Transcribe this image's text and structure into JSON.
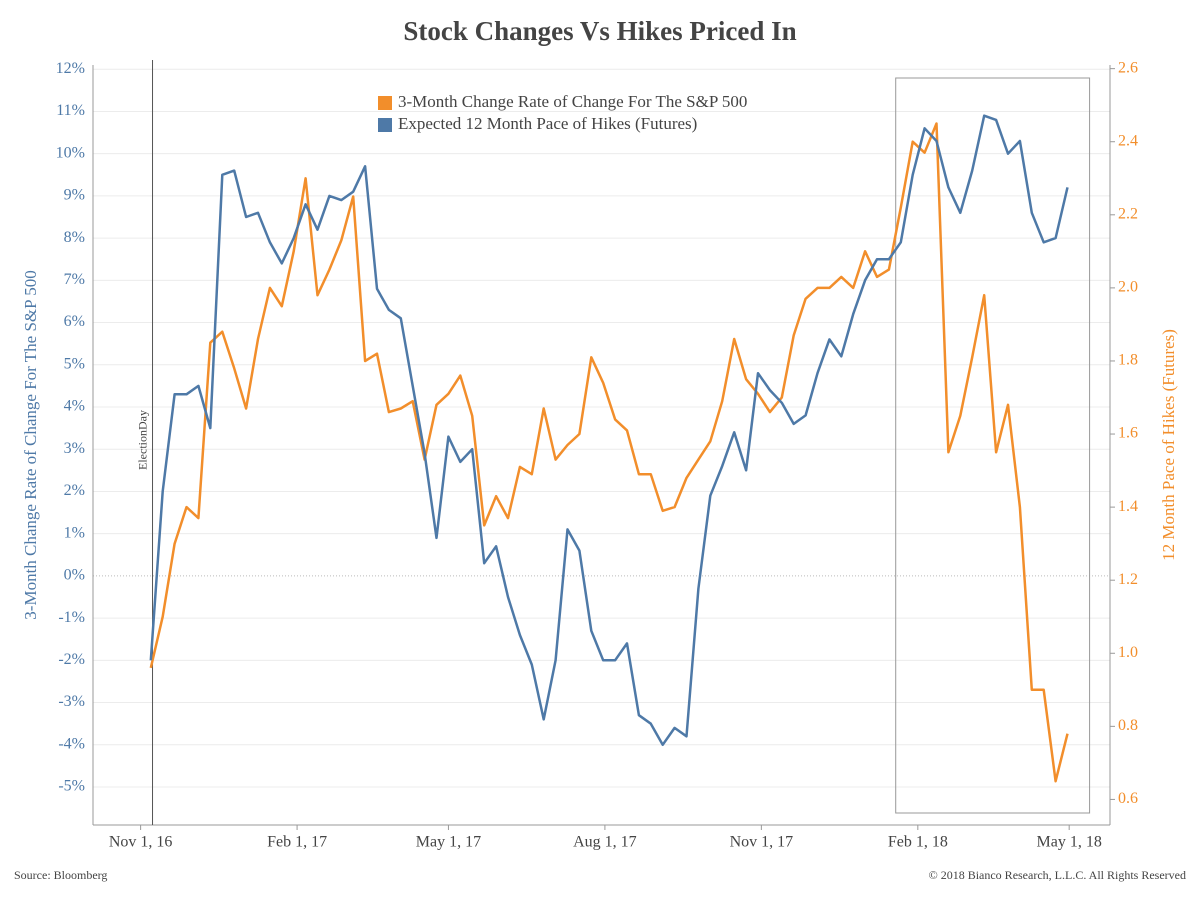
{
  "chart_data": {
    "type": "line",
    "title": "Stock Changes Vs Hikes Priced In",
    "ylabel": "3-Month Change Rate of Change For The S&P 500",
    "y2label": "12 Month Pace of Hikes (Futures)",
    "source": "Source: Bloomberg",
    "copyright": "© 2018 Bianco Research, L.L.C. All Rights Reserved",
    "annotation": {
      "label": "ElectionDay",
      "x": "2016-11-08"
    },
    "highlight": [
      "2018-01-19",
      "2018-05-13"
    ],
    "legend": "top",
    "grid": true,
    "x": [
      "2016-11-07",
      "2016-11-14",
      "2016-11-21",
      "2016-11-28",
      "2016-12-05",
      "2016-12-12",
      "2016-12-19",
      "2016-12-26",
      "2017-01-02",
      "2017-01-09",
      "2017-01-16",
      "2017-01-23",
      "2017-01-30",
      "2017-02-06",
      "2017-02-13",
      "2017-02-20",
      "2017-02-27",
      "2017-03-06",
      "2017-03-13",
      "2017-03-20",
      "2017-03-27",
      "2017-04-03",
      "2017-04-10",
      "2017-04-17",
      "2017-04-24",
      "2017-05-01",
      "2017-05-08",
      "2017-05-15",
      "2017-05-22",
      "2017-05-29",
      "2017-06-05",
      "2017-06-12",
      "2017-06-19",
      "2017-06-26",
      "2017-07-03",
      "2017-07-10",
      "2017-07-17",
      "2017-07-24",
      "2017-07-31",
      "2017-08-07",
      "2017-08-14",
      "2017-08-21",
      "2017-08-28",
      "2017-09-04",
      "2017-09-11",
      "2017-09-18",
      "2017-09-25",
      "2017-10-02",
      "2017-10-09",
      "2017-10-16",
      "2017-10-23",
      "2017-10-30",
      "2017-11-06",
      "2017-11-13",
      "2017-11-20",
      "2017-11-27",
      "2017-12-04",
      "2017-12-11",
      "2017-12-18",
      "2017-12-25",
      "2018-01-01",
      "2018-01-08",
      "2018-01-15",
      "2018-01-22",
      "2018-01-29",
      "2018-02-05",
      "2018-02-12",
      "2018-02-19",
      "2018-02-26",
      "2018-03-05",
      "2018-03-12",
      "2018-03-19",
      "2018-03-26",
      "2018-04-02",
      "2018-04-09",
      "2018-04-16",
      "2018-04-23",
      "2018-04-30"
    ],
    "series": [
      {
        "name": "3-Month Change Rate of Change For The S&P 500",
        "color": "#f28e2b",
        "axis": "y2",
        "values": [
          0.96,
          1.1,
          1.3,
          1.4,
          1.37,
          1.85,
          1.88,
          1.78,
          1.67,
          1.86,
          2.0,
          1.95,
          2.1,
          2.3,
          1.98,
          2.05,
          2.13,
          2.25,
          1.8,
          1.82,
          1.66,
          1.67,
          1.69,
          1.53,
          1.68,
          1.71,
          1.76,
          1.65,
          1.35,
          1.43,
          1.37,
          1.51,
          1.49,
          1.67,
          1.53,
          1.57,
          1.6,
          1.81,
          1.74,
          1.64,
          1.61,
          1.49,
          1.49,
          1.39,
          1.4,
          1.48,
          1.53,
          1.58,
          1.69,
          1.86,
          1.75,
          1.71,
          1.66,
          1.7,
          1.87,
          1.97,
          2.0,
          2.0,
          2.03,
          2.0,
          2.1,
          2.03,
          2.05,
          2.22,
          2.4,
          2.37,
          2.45,
          1.55,
          1.65,
          1.81,
          1.98,
          1.55,
          1.68,
          1.4,
          0.9,
          0.9,
          0.65,
          0.78
        ]
      },
      {
        "name": "Expected 12 Month Pace of Hikes (Futures)",
        "color": "#4e79a7",
        "values": [
          -2.0,
          2.0,
          4.3,
          4.3,
          4.5,
          3.5,
          9.5,
          9.6,
          8.5,
          8.6,
          7.9,
          7.4,
          8.0,
          8.8,
          8.2,
          9.0,
          8.9,
          9.1,
          9.7,
          6.8,
          6.3,
          6.1,
          4.5,
          2.9,
          0.9,
          3.3,
          2.7,
          3.0,
          0.3,
          0.7,
          -0.5,
          -1.4,
          -2.1,
          -3.4,
          -2.0,
          1.1,
          0.6,
          -1.3,
          -2.0,
          -2.0,
          -1.6,
          -3.3,
          -3.5,
          -4.0,
          -3.6,
          -3.8,
          -0.3,
          1.9,
          2.6,
          3.4,
          2.5,
          4.8,
          4.4,
          4.1,
          3.6,
          3.8,
          4.8,
          5.6,
          5.2,
          6.2,
          7.0,
          7.5,
          7.5,
          7.9,
          9.5,
          10.6,
          10.3,
          9.2,
          8.6,
          9.6,
          10.9,
          10.8,
          10.0,
          10.3,
          8.6,
          7.9,
          8.0,
          9.2
        ]
      }
    ],
    "xlim": [
      "2016-10-04",
      "2018-05-25"
    ],
    "xticks": [
      {
        "value": "2016-11-01",
        "label": "Nov 1, 16"
      },
      {
        "value": "2017-02-01",
        "label": "Feb 1, 17"
      },
      {
        "value": "2017-05-01",
        "label": "May 1, 17"
      },
      {
        "value": "2017-08-01",
        "label": "Aug 1, 17"
      },
      {
        "value": "2017-11-01",
        "label": "Nov 1, 17"
      },
      {
        "value": "2018-02-01",
        "label": "Feb 1, 18"
      },
      {
        "value": "2018-05-01",
        "label": "May 1, 18"
      }
    ],
    "ylim": [
      -5.9,
      12.1
    ],
    "yticks": [
      {
        "value": 12,
        "label": "12%"
      },
      {
        "value": 11,
        "label": "11%"
      },
      {
        "value": 10,
        "label": "10%"
      },
      {
        "value": 9,
        "label": "9%"
      },
      {
        "value": 8,
        "label": "8%"
      },
      {
        "value": 7,
        "label": "7%"
      },
      {
        "value": 6,
        "label": "6%"
      },
      {
        "value": 5,
        "label": "5%"
      },
      {
        "value": 4,
        "label": "4%"
      },
      {
        "value": 3,
        "label": "3%"
      },
      {
        "value": 2,
        "label": "2%"
      },
      {
        "value": 1,
        "label": "1%"
      },
      {
        "value": 0,
        "label": "0%"
      },
      {
        "value": -1,
        "label": "-1%"
      },
      {
        "value": -2,
        "label": "-2%"
      },
      {
        "value": -3,
        "label": "-3%"
      },
      {
        "value": -4,
        "label": "-4%"
      },
      {
        "value": -5,
        "label": "-5%"
      }
    ],
    "y2lim": [
      0.53,
      2.61
    ],
    "y2ticks": [
      2.6,
      2.4,
      2.2,
      {
        "value": 2,
        "label": "2.0"
      },
      1.8,
      1.6,
      1.4,
      1.2,
      {
        "value": 1,
        "label": "1.0"
      },
      0.8,
      0.6
    ]
  }
}
